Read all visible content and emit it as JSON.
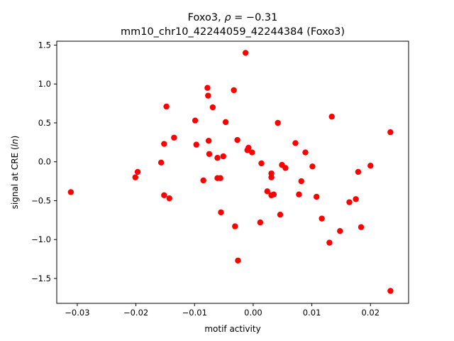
{
  "chart_data": {
    "type": "scatter",
    "title_line1": "Foxo3, ρ = −0.31",
    "title_line2": "mm10_chr10_42244059_42244384 (Foxo3)",
    "xlabel": "motif activity",
    "ylabel": "signal at CRE (ln)",
    "xlim": [
      -0.0335,
      0.0265
    ],
    "ylim": [
      -1.82,
      1.55
    ],
    "x_ticks": [
      {
        "value": -0.03,
        "label": "−0.03"
      },
      {
        "value": -0.02,
        "label": "−0.02"
      },
      {
        "value": -0.01,
        "label": "−0.01"
      },
      {
        "value": 0.0,
        "label": "0.00"
      },
      {
        "value": 0.01,
        "label": "0.01"
      },
      {
        "value": 0.02,
        "label": "0.02"
      }
    ],
    "y_ticks": [
      {
        "value": -1.5,
        "label": "−1.5"
      },
      {
        "value": -1.0,
        "label": "−1.0"
      },
      {
        "value": -0.5,
        "label": "−0.5"
      },
      {
        "value": 0.0,
        "label": "0.0"
      },
      {
        "value": 0.5,
        "label": "0.5"
      },
      {
        "value": 1.0,
        "label": "1.0"
      },
      {
        "value": 1.5,
        "label": "1.5"
      }
    ],
    "grid": false,
    "marker_color": "#ff0000",
    "points": [
      {
        "x": -0.0311,
        "y": -0.39
      },
      {
        "x": -0.0201,
        "y": -0.2
      },
      {
        "x": -0.0197,
        "y": -0.13
      },
      {
        "x": -0.0157,
        "y": -0.01
      },
      {
        "x": -0.0152,
        "y": 0.23
      },
      {
        "x": -0.0152,
        "y": -0.43
      },
      {
        "x": -0.0148,
        "y": 0.71
      },
      {
        "x": -0.0143,
        "y": -0.47
      },
      {
        "x": -0.0135,
        "y": 0.31
      },
      {
        "x": -0.0099,
        "y": 0.53
      },
      {
        "x": -0.0097,
        "y": 0.22
      },
      {
        "x": -0.0085,
        "y": -0.24
      },
      {
        "x": -0.0078,
        "y": 0.95
      },
      {
        "x": -0.0077,
        "y": 0.85
      },
      {
        "x": -0.0076,
        "y": 0.27
      },
      {
        "x": -0.0075,
        "y": 0.1
      },
      {
        "x": -0.0069,
        "y": 0.7
      },
      {
        "x": -0.0061,
        "y": 0.05
      },
      {
        "x": -0.0061,
        "y": -0.21
      },
      {
        "x": -0.0056,
        "y": -0.21
      },
      {
        "x": -0.0055,
        "y": -0.65
      },
      {
        "x": -0.0051,
        "y": 0.07
      },
      {
        "x": -0.0047,
        "y": 0.51
      },
      {
        "x": -0.0033,
        "y": 0.92
      },
      {
        "x": -0.0031,
        "y": -0.83
      },
      {
        "x": -0.0027,
        "y": 0.28
      },
      {
        "x": -0.0026,
        "y": -1.27
      },
      {
        "x": -0.0013,
        "y": 1.4
      },
      {
        "x": -0.001,
        "y": 0.15
      },
      {
        "x": -0.0008,
        "y": 0.18
      },
      {
        "x": -0.0002,
        "y": 0.12
      },
      {
        "x": 0.0012,
        "y": -0.78
      },
      {
        "x": 0.0014,
        "y": -0.02
      },
      {
        "x": 0.0024,
        "y": -0.38
      },
      {
        "x": 0.0031,
        "y": -0.15
      },
      {
        "x": 0.0031,
        "y": -0.2
      },
      {
        "x": 0.0031,
        "y": -0.43
      },
      {
        "x": 0.0035,
        "y": -0.42
      },
      {
        "x": 0.0042,
        "y": 0.5
      },
      {
        "x": 0.0046,
        "y": -0.68
      },
      {
        "x": 0.0049,
        "y": -0.04
      },
      {
        "x": 0.0055,
        "y": -0.08
      },
      {
        "x": 0.0072,
        "y": 0.24
      },
      {
        "x": 0.0078,
        "y": -0.42
      },
      {
        "x": 0.0082,
        "y": -0.25
      },
      {
        "x": 0.0089,
        "y": 0.12
      },
      {
        "x": 0.0101,
        "y": -0.06
      },
      {
        "x": 0.0108,
        "y": -0.45
      },
      {
        "x": 0.0117,
        "y": -0.73
      },
      {
        "x": 0.013,
        "y": -1.04
      },
      {
        "x": 0.0134,
        "y": 0.58
      },
      {
        "x": 0.0148,
        "y": -0.89
      },
      {
        "x": 0.0164,
        "y": -0.52
      },
      {
        "x": 0.0175,
        "y": -0.48
      },
      {
        "x": 0.0179,
        "y": -0.13
      },
      {
        "x": 0.0184,
        "y": -0.84
      },
      {
        "x": 0.02,
        "y": -0.05
      },
      {
        "x": 0.0234,
        "y": 0.38
      },
      {
        "x": 0.0234,
        "y": -1.66
      }
    ]
  }
}
